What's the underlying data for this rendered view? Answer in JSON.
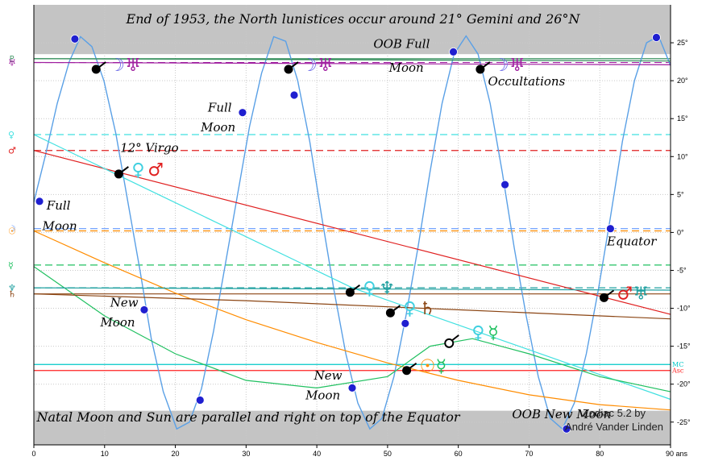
{
  "chart_data": {
    "type": "line",
    "title": "End of 1953, the North lunistices occur around 21° Gemini and 26°N",
    "footer": "Natal Moon and Sun are parallel and right on top of the Equator",
    "credit": [
      "Zodiac 5.2 by",
      "André Vander Linden"
    ],
    "xlim": [
      0,
      90
    ],
    "ylim": [
      -28,
      30
    ],
    "grid": true,
    "x_ticks": [
      0,
      10,
      20,
      30,
      40,
      50,
      60,
      70,
      80,
      90
    ],
    "x_tick_labels": [
      "0",
      "10",
      "20",
      "30",
      "40",
      "50",
      "60",
      "70",
      "80",
      "90 ans"
    ],
    "y_ticks": [
      25,
      20,
      15,
      10,
      5,
      0,
      -5,
      -10,
      -15,
      -20,
      -25
    ],
    "y_tick_labels": [
      "25°",
      "20°",
      "15°",
      "10°",
      "5°",
      "0°",
      "-5°",
      "-10°",
      "-15°",
      "-20°",
      "-25°"
    ],
    "oob_bands": [
      [
        23.5,
        30
      ],
      [
        -28,
        -23.5
      ]
    ],
    "horizontal_lines": [
      {
        "glyph": "♇",
        "y": 22.9,
        "color": "#2e8b57",
        "dashed": false
      },
      {
        "glyph": "♅",
        "y": 22.4,
        "color": "#a020a0",
        "dashed": true
      },
      {
        "glyph": "♀",
        "y": 12.9,
        "color": "#40e0e0",
        "dashed": true
      },
      {
        "glyph": "♂",
        "y": 10.8,
        "color": "#e02020",
        "dashed": true
      },
      {
        "glyph": "☽",
        "y": 0.5,
        "color": "#6699ff",
        "dashed": true
      },
      {
        "glyph": "☉",
        "y": 0.2,
        "color": "#ff8c00",
        "dashed": true
      },
      {
        "glyph": "☿",
        "y": -4.3,
        "color": "#20c060",
        "dashed": true
      },
      {
        "glyph": "♆",
        "y": -7.3,
        "color": "#20a0a0",
        "dashed": true
      },
      {
        "glyph": "♄",
        "y": -8.1,
        "color": "#8b4513",
        "dashed": false
      },
      {
        "glyph": "MC",
        "y": -17.4,
        "color": "#00c8c8",
        "dashed": false
      },
      {
        "glyph": "Asc",
        "y": -18.2,
        "color": "#ff2020",
        "dashed": false
      }
    ],
    "series": [
      {
        "glyph": "☽",
        "color": "#5aa0e6",
        "points": [
          [
            0,
            4
          ],
          [
            1.6,
            10
          ],
          [
            3.3,
            17
          ],
          [
            5,
            22.5
          ],
          [
            6.6,
            25.8
          ],
          [
            8.2,
            24.5
          ],
          [
            9.9,
            20
          ],
          [
            11.6,
            13
          ],
          [
            13.3,
            4
          ],
          [
            15,
            -5
          ],
          [
            16.6,
            -14
          ],
          [
            18.3,
            -21
          ],
          [
            20.2,
            -25.9
          ],
          [
            22,
            -25
          ],
          [
            23.7,
            -20.6
          ],
          [
            25.4,
            -13
          ],
          [
            27.1,
            -4
          ],
          [
            28.8,
            5
          ],
          [
            30.5,
            14
          ],
          [
            32.2,
            21
          ],
          [
            33.9,
            25.8
          ],
          [
            35.6,
            25.2
          ],
          [
            37.3,
            20
          ],
          [
            39,
            12
          ],
          [
            40.7,
            2
          ],
          [
            42.4,
            -7.5
          ],
          [
            44.1,
            -16
          ],
          [
            45.8,
            -22.5
          ],
          [
            47.5,
            -25.9
          ],
          [
            49.2,
            -24.5
          ],
          [
            50.9,
            -19
          ],
          [
            52.6,
            -11
          ],
          [
            54.3,
            -2
          ],
          [
            56,
            8
          ],
          [
            57.7,
            17
          ],
          [
            59.4,
            23.5
          ],
          [
            61.1,
            25.9
          ],
          [
            62.8,
            23.5
          ],
          [
            64.5,
            17
          ],
          [
            66.2,
            8
          ],
          [
            67.9,
            -2
          ],
          [
            69.6,
            -11
          ],
          [
            71.3,
            -19
          ],
          [
            73,
            -24.5
          ],
          [
            74.7,
            -25.9
          ],
          [
            76.4,
            -22.5
          ],
          [
            78.1,
            -16
          ],
          [
            79.8,
            -7.5
          ],
          [
            81.5,
            2
          ],
          [
            83.2,
            12
          ],
          [
            84.9,
            20
          ],
          [
            86.6,
            25
          ],
          [
            88.3,
            25.9
          ],
          [
            90,
            22
          ]
        ]
      },
      {
        "glyph": "♂",
        "color": "#e02020",
        "points": [
          [
            0,
            10.8
          ],
          [
            90,
            -10.8
          ]
        ]
      },
      {
        "glyph": "♀",
        "color": "#40e0e0",
        "points": [
          [
            0,
            12.9
          ],
          [
            45,
            -7.3
          ],
          [
            90,
            -22
          ]
        ]
      },
      {
        "glyph": "☉",
        "color": "#ff8c00",
        "points": [
          [
            0,
            0.2
          ],
          [
            10,
            -4
          ],
          [
            20,
            -8
          ],
          [
            30,
            -11.5
          ],
          [
            40,
            -14.5
          ],
          [
            50,
            -17.2
          ],
          [
            60,
            -19.5
          ],
          [
            70,
            -21.4
          ],
          [
            80,
            -22.7
          ],
          [
            90,
            -23.4
          ]
        ]
      },
      {
        "glyph": "☿",
        "color": "#20c060",
        "points": [
          [
            0,
            -4.5
          ],
          [
            10,
            -11
          ],
          [
            20,
            -16
          ],
          [
            30,
            -19.5
          ],
          [
            40,
            -20.5
          ],
          [
            50,
            -19
          ],
          [
            56,
            -15
          ],
          [
            62,
            -14
          ],
          [
            70,
            -16
          ],
          [
            80,
            -19
          ],
          [
            90,
            -21
          ]
        ]
      },
      {
        "glyph": "♄",
        "color": "#8b4513",
        "points": [
          [
            0,
            -8.1
          ],
          [
            30,
            -9
          ],
          [
            60,
            -10.2
          ],
          [
            90,
            -11.4
          ]
        ]
      },
      {
        "glyph": "♆",
        "color": "#20a0a0",
        "points": [
          [
            0,
            -7.3
          ],
          [
            90,
            -7.6
          ]
        ]
      },
      {
        "glyph": "♅",
        "color": "#a020a0",
        "points": [
          [
            0,
            22.4
          ],
          [
            90,
            22.1
          ]
        ]
      },
      {
        "glyph": "♇",
        "color": "#2e8b57",
        "points": [
          [
            0,
            22.9
          ],
          [
            90,
            22.6
          ]
        ]
      }
    ],
    "moon_markers": [
      [
        5.8,
        25.5
      ],
      [
        0.8,
        4.1
      ],
      [
        15.6,
        -10.2
      ],
      [
        23.5,
        -22.1
      ],
      [
        29.5,
        15.8
      ],
      [
        36.8,
        18.1
      ],
      [
        45,
        -20.5
      ],
      [
        52.5,
        -12
      ],
      [
        59.3,
        23.8
      ],
      [
        66.6,
        6.3
      ],
      [
        75.3,
        -25.9
      ],
      [
        81.5,
        0.5
      ],
      [
        88,
        25.7
      ]
    ],
    "events": [
      {
        "x": 8.8,
        "y": 21.5,
        "glyph_text": "☽♅",
        "colors": [
          "#6a6ae8",
          "#a020a0"
        ]
      },
      {
        "x": 36,
        "y": 21.5,
        "glyph_text": "☽♅",
        "colors": [
          "#6a6ae8",
          "#a020a0"
        ]
      },
      {
        "x": 63.1,
        "y": 21.5,
        "glyph_text": "☽♅",
        "colors": [
          "#6a6ae8",
          "#a020a0"
        ]
      },
      {
        "x": 12,
        "y": 7.7,
        "glyph_text": "♀♂",
        "colors": [
          "#40d0e0",
          "#e02020"
        ]
      },
      {
        "x": 44.7,
        "y": -7.9,
        "glyph_text": "♀♆",
        "colors": [
          "#40d0e0",
          "#20a0a0"
        ]
      },
      {
        "x": 50.4,
        "y": -10.6,
        "glyph_text": "♀♄",
        "colors": [
          "#40d0e0",
          "#8b4513"
        ]
      },
      {
        "x": 52.7,
        "y": -18.2,
        "glyph_text": "☉☿",
        "colors": [
          "#ff8c00",
          "#20c060"
        ]
      },
      {
        "x": 80.6,
        "y": -8.6,
        "glyph_text": "♂♅",
        "colors": [
          "#e02020",
          "#20a0a0"
        ]
      }
    ],
    "aspect_glyphs": [
      {
        "x": 58.7,
        "y": -14.6,
        "glyph_text": "♀☿",
        "colors": [
          "#40d0e0",
          "#20c060"
        ]
      }
    ],
    "annotations": [
      {
        "text": "OOB Full",
        "x": 48,
        "y": 24.3
      },
      {
        "text": "Moon",
        "x": 50.2,
        "y": 21.2
      },
      {
        "text": "Occultations",
        "x": 64.2,
        "y": 19.4
      },
      {
        "text": "Full",
        "x": 24.6,
        "y": 15.9
      },
      {
        "text": "Moon",
        "x": 23.6,
        "y": 13.3
      },
      {
        "text": "12° Virgo",
        "x": 12.2,
        "y": 10.6
      },
      {
        "text": "Full",
        "x": 1.8,
        "y": 3.0
      },
      {
        "text": "Moon",
        "x": 1.2,
        "y": 0.3
      },
      {
        "text": "Equator",
        "x": 81,
        "y": -1.7
      },
      {
        "text": "New",
        "x": 10.8,
        "y": -9.8
      },
      {
        "text": "Moon",
        "x": 9.4,
        "y": -12.4
      },
      {
        "text": "New",
        "x": 39.6,
        "y": -19.4
      },
      {
        "text": "Moon",
        "x": 38.4,
        "y": -22
      },
      {
        "text": "OOB New Moon",
        "x": 67.6,
        "y": -24.5
      }
    ]
  }
}
